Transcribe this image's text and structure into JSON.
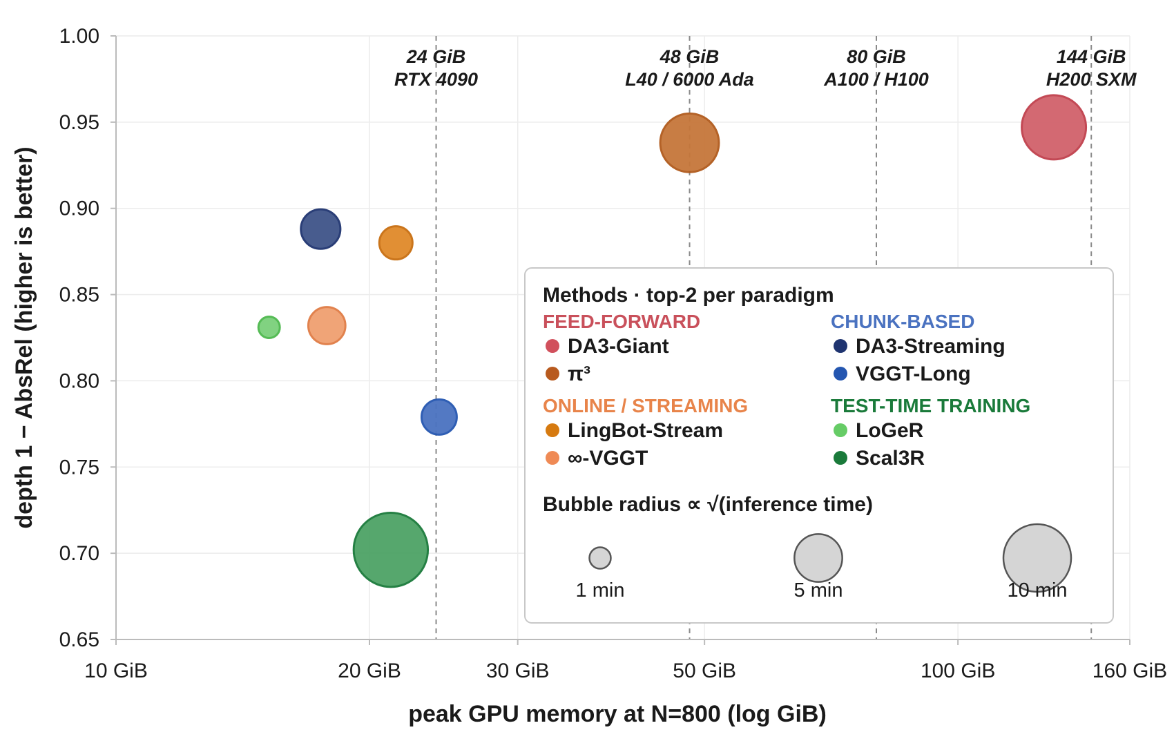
{
  "chart_data": {
    "type": "scatter",
    "xlabel": "peak GPU memory at N=800 (log GiB)",
    "ylabel": "depth 1 − AbsRel  (higher is better)",
    "x_scale": "log",
    "xlim": [
      10,
      160
    ],
    "ylim": [
      0.65,
      1.0
    ],
    "x_ticks": [
      {
        "value": 10,
        "label": "10 GiB"
      },
      {
        "value": 20,
        "label": "20 GiB"
      },
      {
        "value": 30,
        "label": "30 GiB"
      },
      {
        "value": 50,
        "label": "50 GiB"
      },
      {
        "value": 100,
        "label": "100 GiB"
      },
      {
        "value": 160,
        "label": "160 GiB"
      }
    ],
    "y_ticks": [
      {
        "value": 0.65,
        "label": "0.65"
      },
      {
        "value": 0.7,
        "label": "0.70"
      },
      {
        "value": 0.75,
        "label": "0.75"
      },
      {
        "value": 0.8,
        "label": "0.80"
      },
      {
        "value": 0.85,
        "label": "0.85"
      },
      {
        "value": 0.9,
        "label": "0.90"
      },
      {
        "value": 0.95,
        "label": "0.95"
      },
      {
        "value": 1.0,
        "label": "1.00"
      }
    ],
    "grid": true,
    "reference_lines": [
      {
        "x": 24,
        "line1": "24 GiB",
        "line2": "RTX 4090"
      },
      {
        "x": 48,
        "line1": "48 GiB",
        "line2": "L40 / 6000 Ada"
      },
      {
        "x": 80,
        "line1": "80 GiB",
        "line2": "A100 / H100"
      },
      {
        "x": 144,
        "line1": "144 GiB",
        "line2": "H200 SXM"
      }
    ],
    "points": [
      {
        "name": "DA3-Giant",
        "x": 130,
        "y": 0.947,
        "time_min": 9.0,
        "color": "#d1626b",
        "edge": "#c0404c"
      },
      {
        "name": "π³",
        "x": 48,
        "y": 0.938,
        "time_min": 7.5,
        "color": "#c6773a",
        "edge": "#b05a1c"
      },
      {
        "name": "DA3-Streaming",
        "x": 17.5,
        "y": 0.888,
        "time_min": 3.4,
        "color": "#3f5488",
        "edge": "#1f3470"
      },
      {
        "name": "VGGT-Long",
        "x": 24.2,
        "y": 0.779,
        "time_min": 2.7,
        "color": "#4a72c0",
        "edge": "#2456b0"
      },
      {
        "name": "LingBot-Stream",
        "x": 21.5,
        "y": 0.88,
        "time_min": 2.4,
        "color": "#e08a2a",
        "edge": "#c86e10"
      },
      {
        "name": "∞-VGGT",
        "x": 17.8,
        "y": 0.832,
        "time_min": 3.0,
        "color": "#f0a070",
        "edge": "#e07c45"
      },
      {
        "name": "LoGeR",
        "x": 15.2,
        "y": 0.831,
        "time_min": 1.0,
        "color": "#7bd07b",
        "edge": "#4cb84c"
      },
      {
        "name": "Scal3R",
        "x": 21.2,
        "y": 0.702,
        "time_min": 12.0,
        "color": "#4da366",
        "edge": "#1a7a3a"
      }
    ],
    "legend": {
      "title": "Methods · top-2 per paradigm",
      "position": "lower-right",
      "groups": [
        {
          "name": "FEED-FORWARD",
          "color": "#c9505b",
          "entries": [
            {
              "label": "DA3-Giant",
              "color": "#d1505c"
            },
            {
              "label": "π³",
              "color": "#b85a1e"
            }
          ]
        },
        {
          "name": "CHUNK-BASED",
          "color": "#4a72c0",
          "entries": [
            {
              "label": "DA3-Streaming",
              "color": "#1f3470"
            },
            {
              "label": "VGGT-Long",
              "color": "#2456b0"
            }
          ]
        },
        {
          "name": "ONLINE / STREAMING",
          "color": "#e8844a",
          "entries": [
            {
              "label": "LingBot-Stream",
              "color": "#d67a10"
            },
            {
              "label": "∞-VGGT",
              "color": "#ef8a55"
            }
          ]
        },
        {
          "name": "TEST-TIME TRAINING",
          "color": "#1a7a3a",
          "entries": [
            {
              "label": "LoGeR",
              "color": "#66cc66"
            },
            {
              "label": "Scal3R",
              "color": "#1a7a3a"
            }
          ]
        }
      ],
      "size_title": "Bubble radius ∝ √(inference time)",
      "sizes": [
        {
          "label": "1 min",
          "time_min": 1
        },
        {
          "label": "5 min",
          "time_min": 5
        },
        {
          "label": "10 min",
          "time_min": 10
        }
      ],
      "size_color": "#d5d5d5",
      "size_edge": "#555555"
    }
  }
}
